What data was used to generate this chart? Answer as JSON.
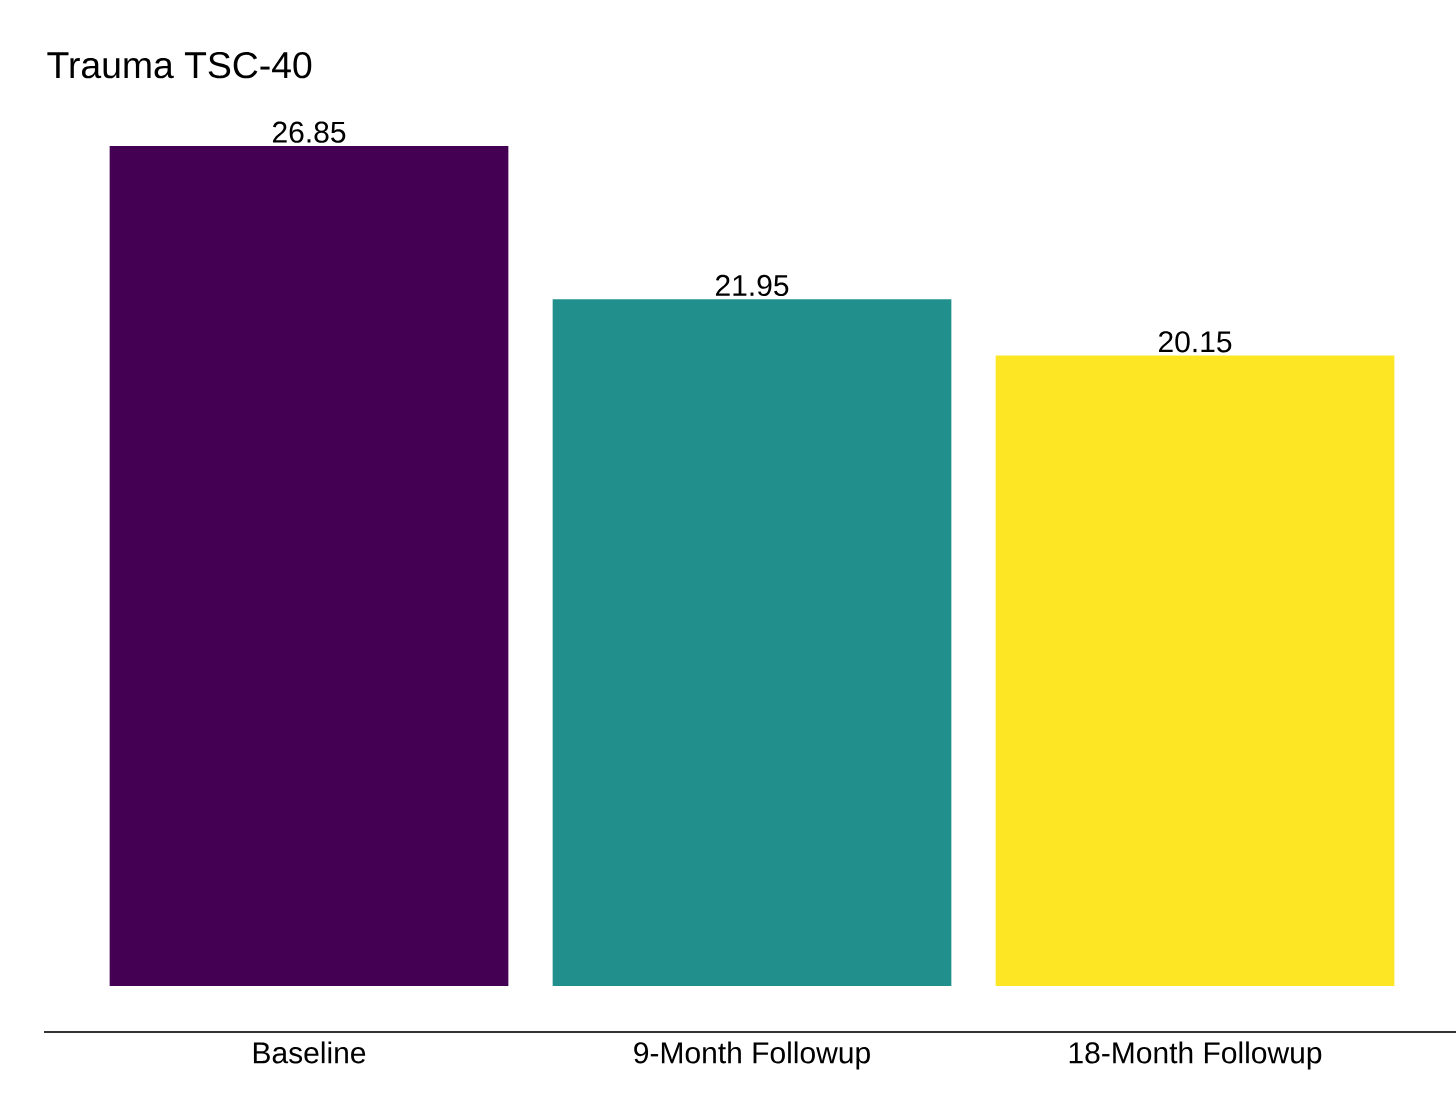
{
  "chart_data": {
    "type": "bar",
    "title": "Trauma TSC-40",
    "categories": [
      "Baseline",
      "9-Month Followup",
      "18-Month Followup"
    ],
    "values": [
      26.85,
      21.95,
      20.15
    ],
    "colors": [
      "#440154",
      "#21908c",
      "#fde725"
    ],
    "data_labels": true
  }
}
